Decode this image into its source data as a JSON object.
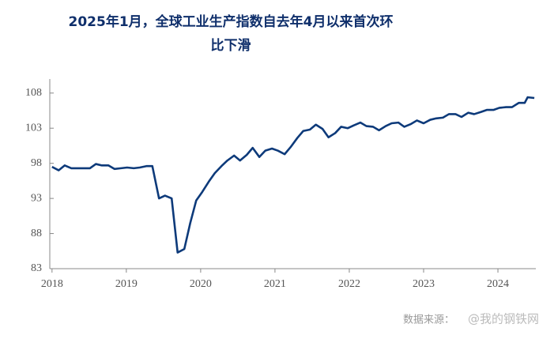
{
  "chart_data": {
    "type": "line",
    "title": [
      "2025年1月，全球工业生产指数自去年4月以来首次环",
      "比下滑"
    ],
    "source": "数据来源：",
    "watermark": "@我的钢铁网",
    "x": [
      2018.0,
      2018.09,
      2018.17,
      2018.26,
      2018.34,
      2018.43,
      2018.51,
      2018.59,
      2018.67,
      2018.76,
      2018.84,
      2018.93,
      2019.01,
      2019.1,
      2019.18,
      2019.27,
      2019.35,
      2019.44,
      2019.52,
      2019.61,
      2019.69,
      2019.78,
      2019.86,
      2019.94,
      2020.02,
      2020.11,
      2020.19,
      2020.28,
      2020.36,
      2020.45,
      2020.53,
      2020.62,
      2020.7,
      2020.79,
      2020.87,
      2020.96,
      2021.04,
      2021.13,
      2021.21,
      2021.3,
      2021.38,
      2021.47,
      2021.55,
      2021.64,
      2021.72,
      2021.81,
      2021.89,
      2021.98,
      2022.06,
      2022.15,
      2022.23,
      2022.32,
      2022.4,
      2022.49,
      2022.57,
      2022.66,
      2022.74,
      2022.83,
      2022.91,
      2023.0,
      2023.09,
      2023.17,
      2023.26,
      2023.34,
      2023.43,
      2023.51,
      2023.6,
      2023.68,
      2023.77,
      2023.85,
      2023.94,
      2024.02,
      2024.11,
      2024.19,
      2024.28,
      2024.36,
      2024.4,
      2024.49
    ],
    "series": [
      {
        "color": "#0d3a7a",
        "values": [
          97.5,
          97.0,
          97.7,
          97.3,
          97.3,
          97.3,
          97.3,
          97.9,
          97.7,
          97.7,
          97.2,
          97.3,
          97.4,
          97.3,
          97.4,
          97.6,
          97.6,
          93.0,
          93.4,
          93.0,
          85.3,
          85.8,
          89.5,
          92.7,
          93.9,
          95.4,
          96.6,
          97.6,
          98.4,
          99.1,
          98.4,
          99.2,
          100.2,
          98.9,
          99.8,
          100.1,
          99.8,
          99.3,
          100.3,
          101.6,
          102.6,
          102.8,
          103.5,
          102.9,
          101.7,
          102.3,
          103.2,
          103.0,
          103.4,
          103.8,
          103.3,
          103.2,
          102.7,
          103.3,
          103.7,
          103.8,
          103.2,
          103.6,
          104.1,
          103.7,
          104.2,
          104.4,
          104.5,
          105.0,
          105.0,
          104.6,
          105.2,
          105.0,
          105.3,
          105.6,
          105.6,
          105.9,
          106.0,
          106.0,
          106.6,
          106.6,
          107.4,
          107.3
        ]
      }
    ],
    "xlim": [
      2017.97,
      2024.51
    ],
    "xticks": [
      2018,
      2019,
      2020,
      2021,
      2022,
      2023,
      2024
    ],
    "ylim": [
      83,
      110
    ],
    "yticks": [
      83,
      88,
      93,
      98,
      103,
      108
    ]
  }
}
